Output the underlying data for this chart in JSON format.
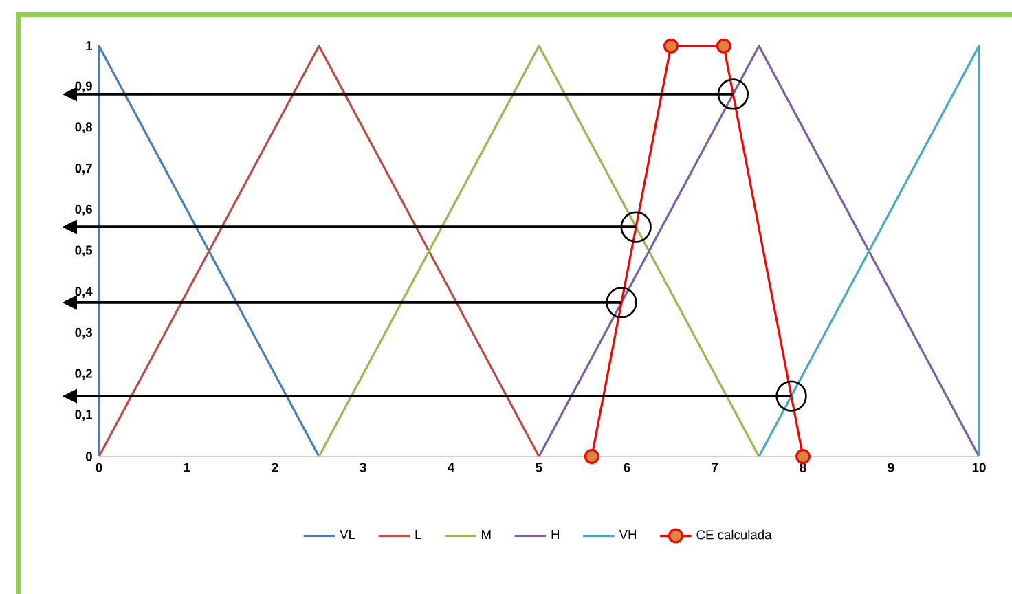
{
  "chart_data": {
    "type": "line",
    "xlim": [
      0,
      10
    ],
    "ylim": [
      0,
      1
    ],
    "xticks": [
      0,
      1,
      2,
      3,
      4,
      5,
      6,
      7,
      8,
      9,
      10
    ],
    "yticks": [
      0,
      {
        "value": 0.1,
        "label": "0,1"
      },
      {
        "value": 0.2,
        "label": "0,2"
      },
      {
        "value": 0.3,
        "label": "0,3"
      },
      {
        "value": 0.4,
        "label": "0,4"
      },
      {
        "value": 0.5,
        "label": "0,5"
      },
      {
        "value": 0.6,
        "label": "0,6"
      },
      {
        "value": 0.7,
        "label": "0,7"
      },
      {
        "value": 0.8,
        "label": "0,8"
      },
      {
        "value": 0.9,
        "label": "0,9"
      },
      1
    ],
    "grid": false,
    "legend": "bottom",
    "marker": "none",
    "line_style": "solid",
    "series": [
      {
        "name": "VL",
        "color": "#4a7ebb",
        "x": [
          0,
          0,
          2.5
        ],
        "values": [
          0,
          1,
          0
        ]
      },
      {
        "name": "L",
        "color": "#be4b48",
        "x": [
          0,
          2.5,
          5
        ],
        "values": [
          0,
          1,
          0
        ]
      },
      {
        "name": "M",
        "color": "#98b954",
        "x": [
          2.5,
          5,
          7.5
        ],
        "values": [
          0,
          1,
          0
        ]
      },
      {
        "name": "H",
        "color": "#7d60a0",
        "x": [
          5,
          7.5,
          10
        ],
        "values": [
          0,
          1,
          0
        ]
      },
      {
        "name": "VH",
        "color": "#46aac5",
        "x": [
          7.5,
          10,
          10
        ],
        "values": [
          0,
          1,
          0
        ]
      },
      {
        "name": "CE calculada",
        "color": "#ff0000",
        "marker": "circle",
        "x": [
          5.6,
          6.5,
          7.1,
          8
        ],
        "values": [
          0,
          1,
          1,
          0
        ]
      }
    ]
  }
}
